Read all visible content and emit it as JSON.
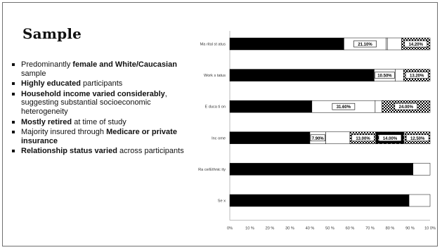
{
  "slide": {
    "title": "Sample",
    "bullets": [
      {
        "parts": [
          {
            "t": "Predominantly ",
            "b": false
          },
          {
            "t": "female and White/Caucasian",
            "b": true
          },
          {
            "t": " sample",
            "b": false
          }
        ]
      },
      {
        "parts": [
          {
            "t": "Highly educated",
            "b": true
          },
          {
            "t": " participants",
            "b": false
          }
        ]
      },
      {
        "parts": [
          {
            "t": "Household income varied considerably",
            "b": true
          },
          {
            "t": ", suggesting substantial socioeconomic heterogeneity",
            "b": false
          }
        ]
      },
      {
        "parts": [
          {
            "t": "Mostly retired",
            "b": true
          },
          {
            "t": " at time of study",
            "b": false
          }
        ]
      },
      {
        "parts": [
          {
            "t": "Majority insured through ",
            "b": false
          },
          {
            "t": "Medicare or private insurance",
            "b": true
          }
        ]
      },
      {
        "parts": [
          {
            "t": "Relationship status varied",
            "b": true
          },
          {
            "t": " across participants",
            "b": false
          }
        ]
      }
    ]
  },
  "chart_data": {
    "type": "bar",
    "orientation": "horizontal",
    "stacked": true,
    "categories": [
      "Marital status",
      "Work status",
      "Education",
      "Income",
      "Race/Ethnicity",
      "Sex"
    ],
    "category_labels": [
      "Ma rital st atus",
      "Work s tatus",
      "E duca ti on",
      "Inc ome",
      "Ra ce/Ethnic ity",
      "Se x"
    ],
    "xlim": [
      0,
      100
    ],
    "x_ticks": [
      "0%",
      "10 %",
      "20 %",
      "30 %",
      "40 %",
      "50 %",
      "60 %",
      "70 %",
      "80 %",
      "90 %",
      "10 0%"
    ],
    "segments": [
      [
        {
          "value": 57.0,
          "fill": "black"
        },
        {
          "value": 21.1,
          "fill": "white",
          "label": "21.10%"
        },
        {
          "value": 0.6,
          "fill": "white"
        },
        {
          "value": 7.1,
          "fill": "white"
        },
        {
          "value": 14.2,
          "fill": "check",
          "label": "14.20%"
        }
      ],
      [
        {
          "value": 72.1,
          "fill": "black"
        },
        {
          "value": 10.5,
          "fill": "white",
          "label": "10.50%"
        },
        {
          "value": 4.2,
          "fill": "white"
        },
        {
          "value": 13.2,
          "fill": "check",
          "label": "13.20%"
        }
      ],
      [
        {
          "value": 41.0,
          "fill": "black"
        },
        {
          "value": 31.6,
          "fill": "white",
          "label": "31.60%"
        },
        {
          "value": 3.4,
          "fill": "white"
        },
        {
          "value": 24.0,
          "fill": "check",
          "label": "24.00%"
        }
      ],
      [
        {
          "value": 40.0,
          "fill": "black"
        },
        {
          "value": 7.9,
          "fill": "white",
          "label": "7.90%"
        },
        {
          "value": 12.1,
          "fill": "white"
        },
        {
          "value": 13.0,
          "fill": "check",
          "label": "13.00%"
        },
        {
          "value": 14.0,
          "fill": "dots",
          "label": "14.00%"
        },
        {
          "value": 0.5,
          "fill": "white"
        },
        {
          "value": 12.5,
          "fill": "check",
          "label": "12.50%"
        }
      ],
      [
        {
          "value": 91.5,
          "fill": "black"
        },
        {
          "value": 8.5,
          "fill": "white"
        }
      ],
      [
        {
          "value": 89.5,
          "fill": "black"
        },
        {
          "value": 10.5,
          "fill": "white"
        }
      ]
    ],
    "colors": {
      "bar_black": "#000000",
      "bar_white": "#ffffff",
      "axis": "#bdbdbd",
      "label_border": "#000000"
    }
  }
}
